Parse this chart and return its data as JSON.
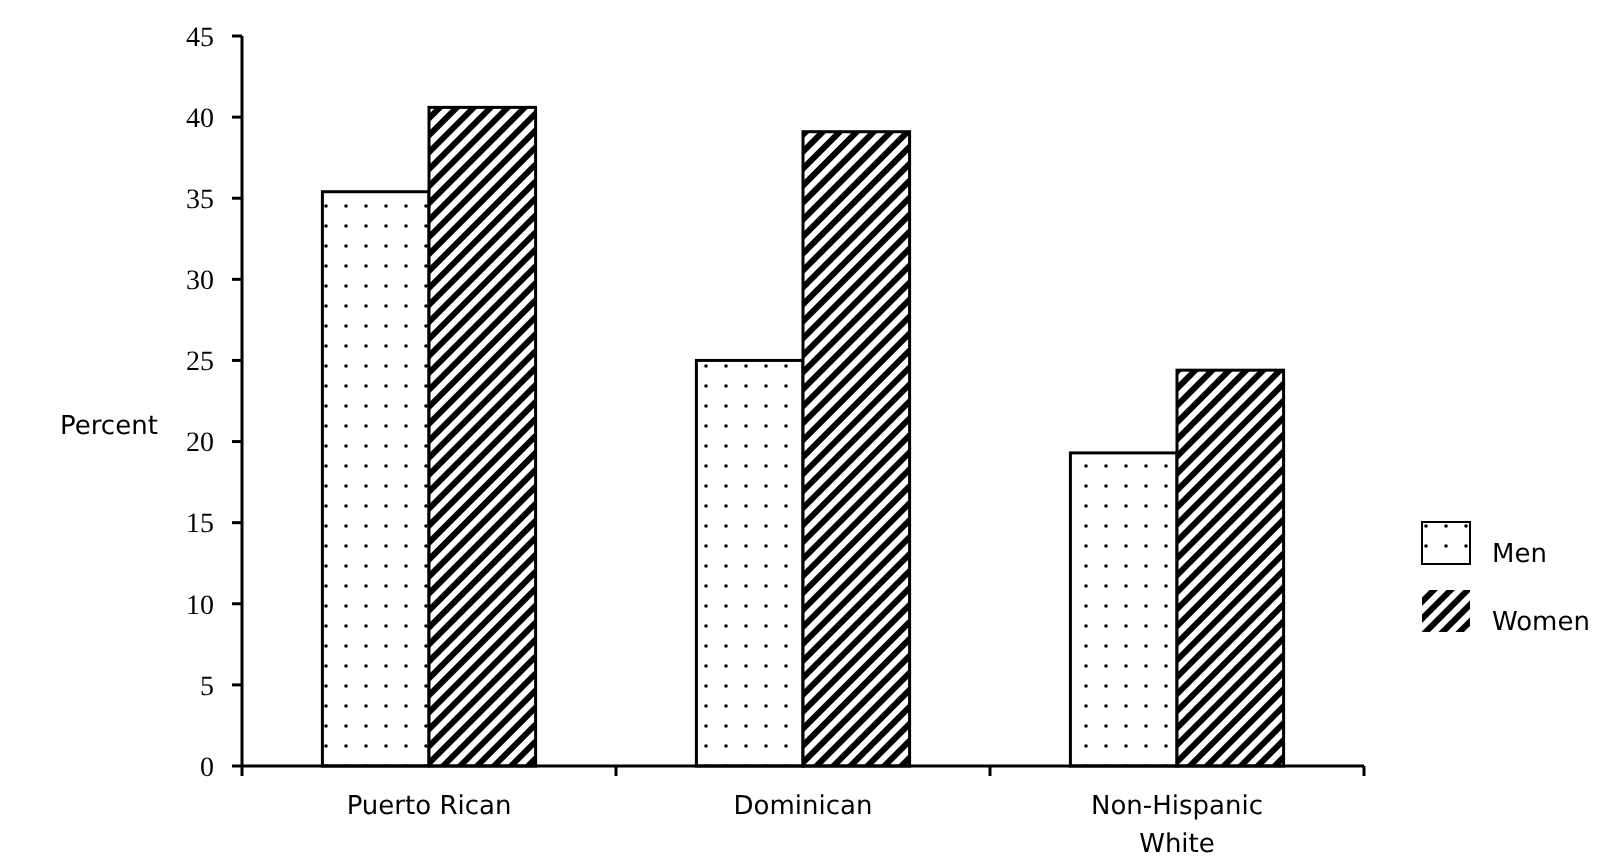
{
  "chart_data": {
    "type": "bar",
    "ylabel": "Percent",
    "categories": [
      "Puerto Rican",
      "Dominican",
      "Non-Hispanic White"
    ],
    "series": [
      {
        "name": "Men",
        "color": "#000000",
        "values": [
          35.4,
          25.0,
          19.3
        ]
      },
      {
        "name": "Women",
        "color": "#000000",
        "values": [
          40.6,
          39.1,
          24.4
        ]
      }
    ],
    "ylim": [
      0,
      45
    ],
    "yticks": [
      0,
      5,
      10,
      15,
      20,
      25,
      30,
      35,
      40,
      45
    ],
    "grid": false,
    "legend": "right"
  }
}
